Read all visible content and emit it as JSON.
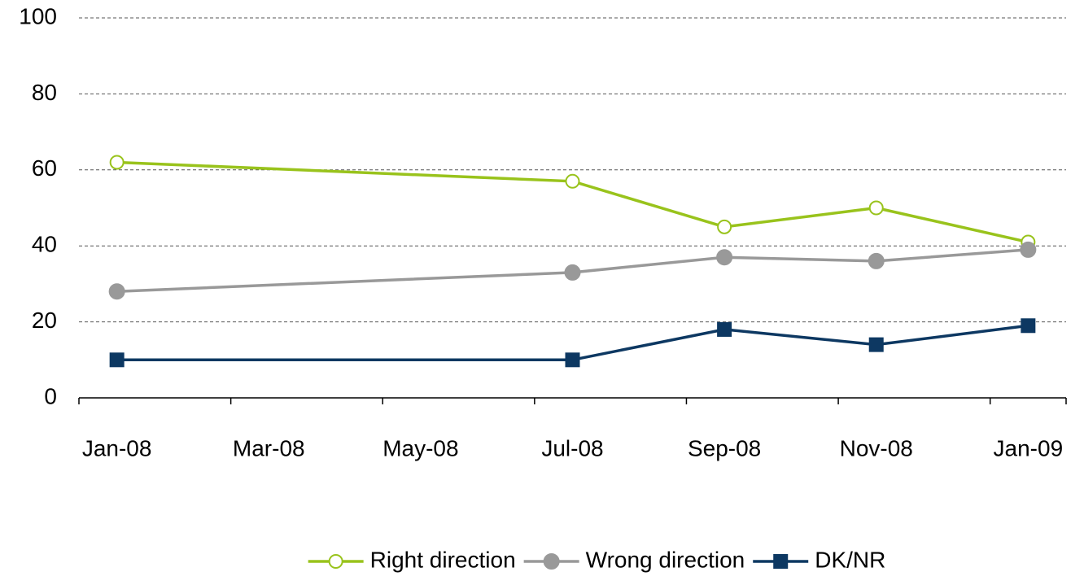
{
  "chart_data": {
    "type": "line",
    "x": [
      "2008-01",
      "2008-07",
      "2008-09",
      "2008-11",
      "2009-01"
    ],
    "xlim": [
      "2008-01",
      "2009-01"
    ],
    "xticks": [
      {
        "value": "2008-01",
        "label": "Jan-08"
      },
      {
        "value": "2008-03",
        "label": "Mar-08"
      },
      {
        "value": "2008-05",
        "label": "May-08"
      },
      {
        "value": "2008-07",
        "label": "Jul-08"
      },
      {
        "value": "2008-09",
        "label": "Sep-08"
      },
      {
        "value": "2008-11",
        "label": "Nov-08"
      },
      {
        "value": "2009-01",
        "label": "Jan-09"
      }
    ],
    "ylim": [
      0,
      100
    ],
    "yticks": [
      0,
      20,
      40,
      60,
      80,
      100
    ],
    "grid": true,
    "legend": "bottom",
    "series": [
      {
        "name": "Right direction",
        "color": "#99c31c",
        "marker": "circle-open",
        "values": [
          62,
          57,
          45,
          50,
          41
        ]
      },
      {
        "name": "Wrong direction",
        "color": "#999999",
        "marker": "circle",
        "values": [
          28,
          33,
          37,
          36,
          39
        ]
      },
      {
        "name": "DK/NR",
        "color": "#0d3862",
        "marker": "square",
        "values": [
          10,
          10,
          18,
          14,
          19
        ]
      }
    ]
  }
}
